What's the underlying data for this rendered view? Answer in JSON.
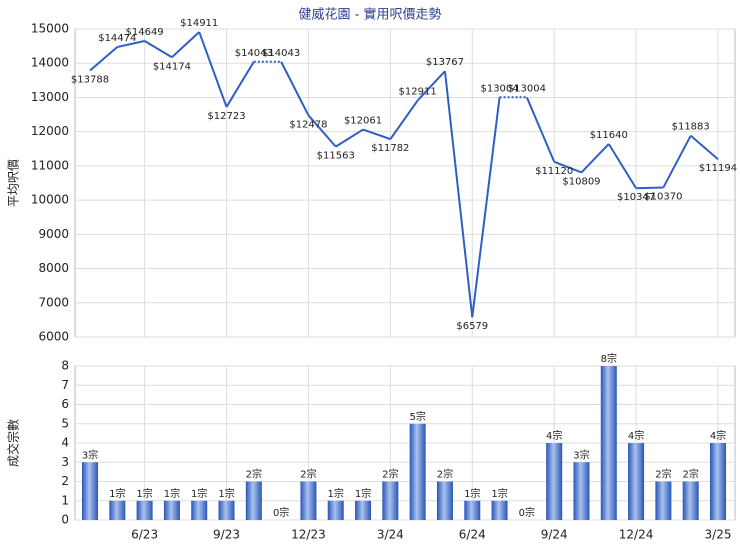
{
  "chart_data": [
    {
      "type": "line",
      "title": "健威花園 - 實用呎價走勢",
      "y_label": "平均呎價",
      "color": "#2f5fc4",
      "ylim": [
        6000,
        15000
      ],
      "yticks": [
        6000,
        7000,
        8000,
        9000,
        10000,
        11000,
        12000,
        13000,
        14000,
        15000
      ],
      "grid": true,
      "values": [
        13788,
        14474,
        14649,
        14174,
        14911,
        12723,
        14043,
        14043,
        12478,
        11563,
        12061,
        11782,
        12911,
        13767,
        6579,
        13004,
        13004,
        11120,
        10809,
        11640,
        10347,
        10370,
        11883,
        11194
      ],
      "value_labels": [
        "$13788",
        "$14474",
        "$14649",
        "$14174",
        "$14911",
        "$12723",
        "$14043",
        "$14043",
        "$12478",
        "$11563",
        "$12061",
        "$11782",
        "$12911",
        "$13767",
        "$6579",
        "$13004",
        "$13004",
        "$11120",
        "$10809",
        "$11640",
        "$10347",
        "$10370",
        "$11883",
        "$11194"
      ]
    },
    {
      "type": "bar",
      "y_label": "成交宗數",
      "color": "#3f6fcf",
      "ylim": [
        0,
        8
      ],
      "yticks": [
        0,
        1,
        2,
        3,
        4,
        5,
        6,
        7,
        8
      ],
      "grid": true,
      "categories": [
        null,
        null,
        "6/23",
        null,
        null,
        "9/23",
        null,
        null,
        "12/23",
        null,
        null,
        "3/24",
        null,
        null,
        "6/24",
        null,
        null,
        "9/24",
        null,
        null,
        "12/24",
        null,
        null,
        "3/25"
      ],
      "values": [
        3,
        1,
        1,
        1,
        1,
        1,
        2,
        0,
        2,
        1,
        1,
        2,
        5,
        2,
        1,
        1,
        0,
        4,
        3,
        8,
        4,
        2,
        2,
        4
      ],
      "value_labels": [
        "3宗",
        "1宗",
        "1宗",
        "1宗",
        "1宗",
        "1宗",
        "2宗",
        "0宗",
        "2宗",
        "1宗",
        "1宗",
        "2宗",
        "5宗",
        "2宗",
        "1宗",
        "1宗",
        "0宗",
        "4宗",
        "3宗",
        "8宗",
        "4宗",
        "2宗",
        "2宗",
        "4宗"
      ]
    }
  ]
}
